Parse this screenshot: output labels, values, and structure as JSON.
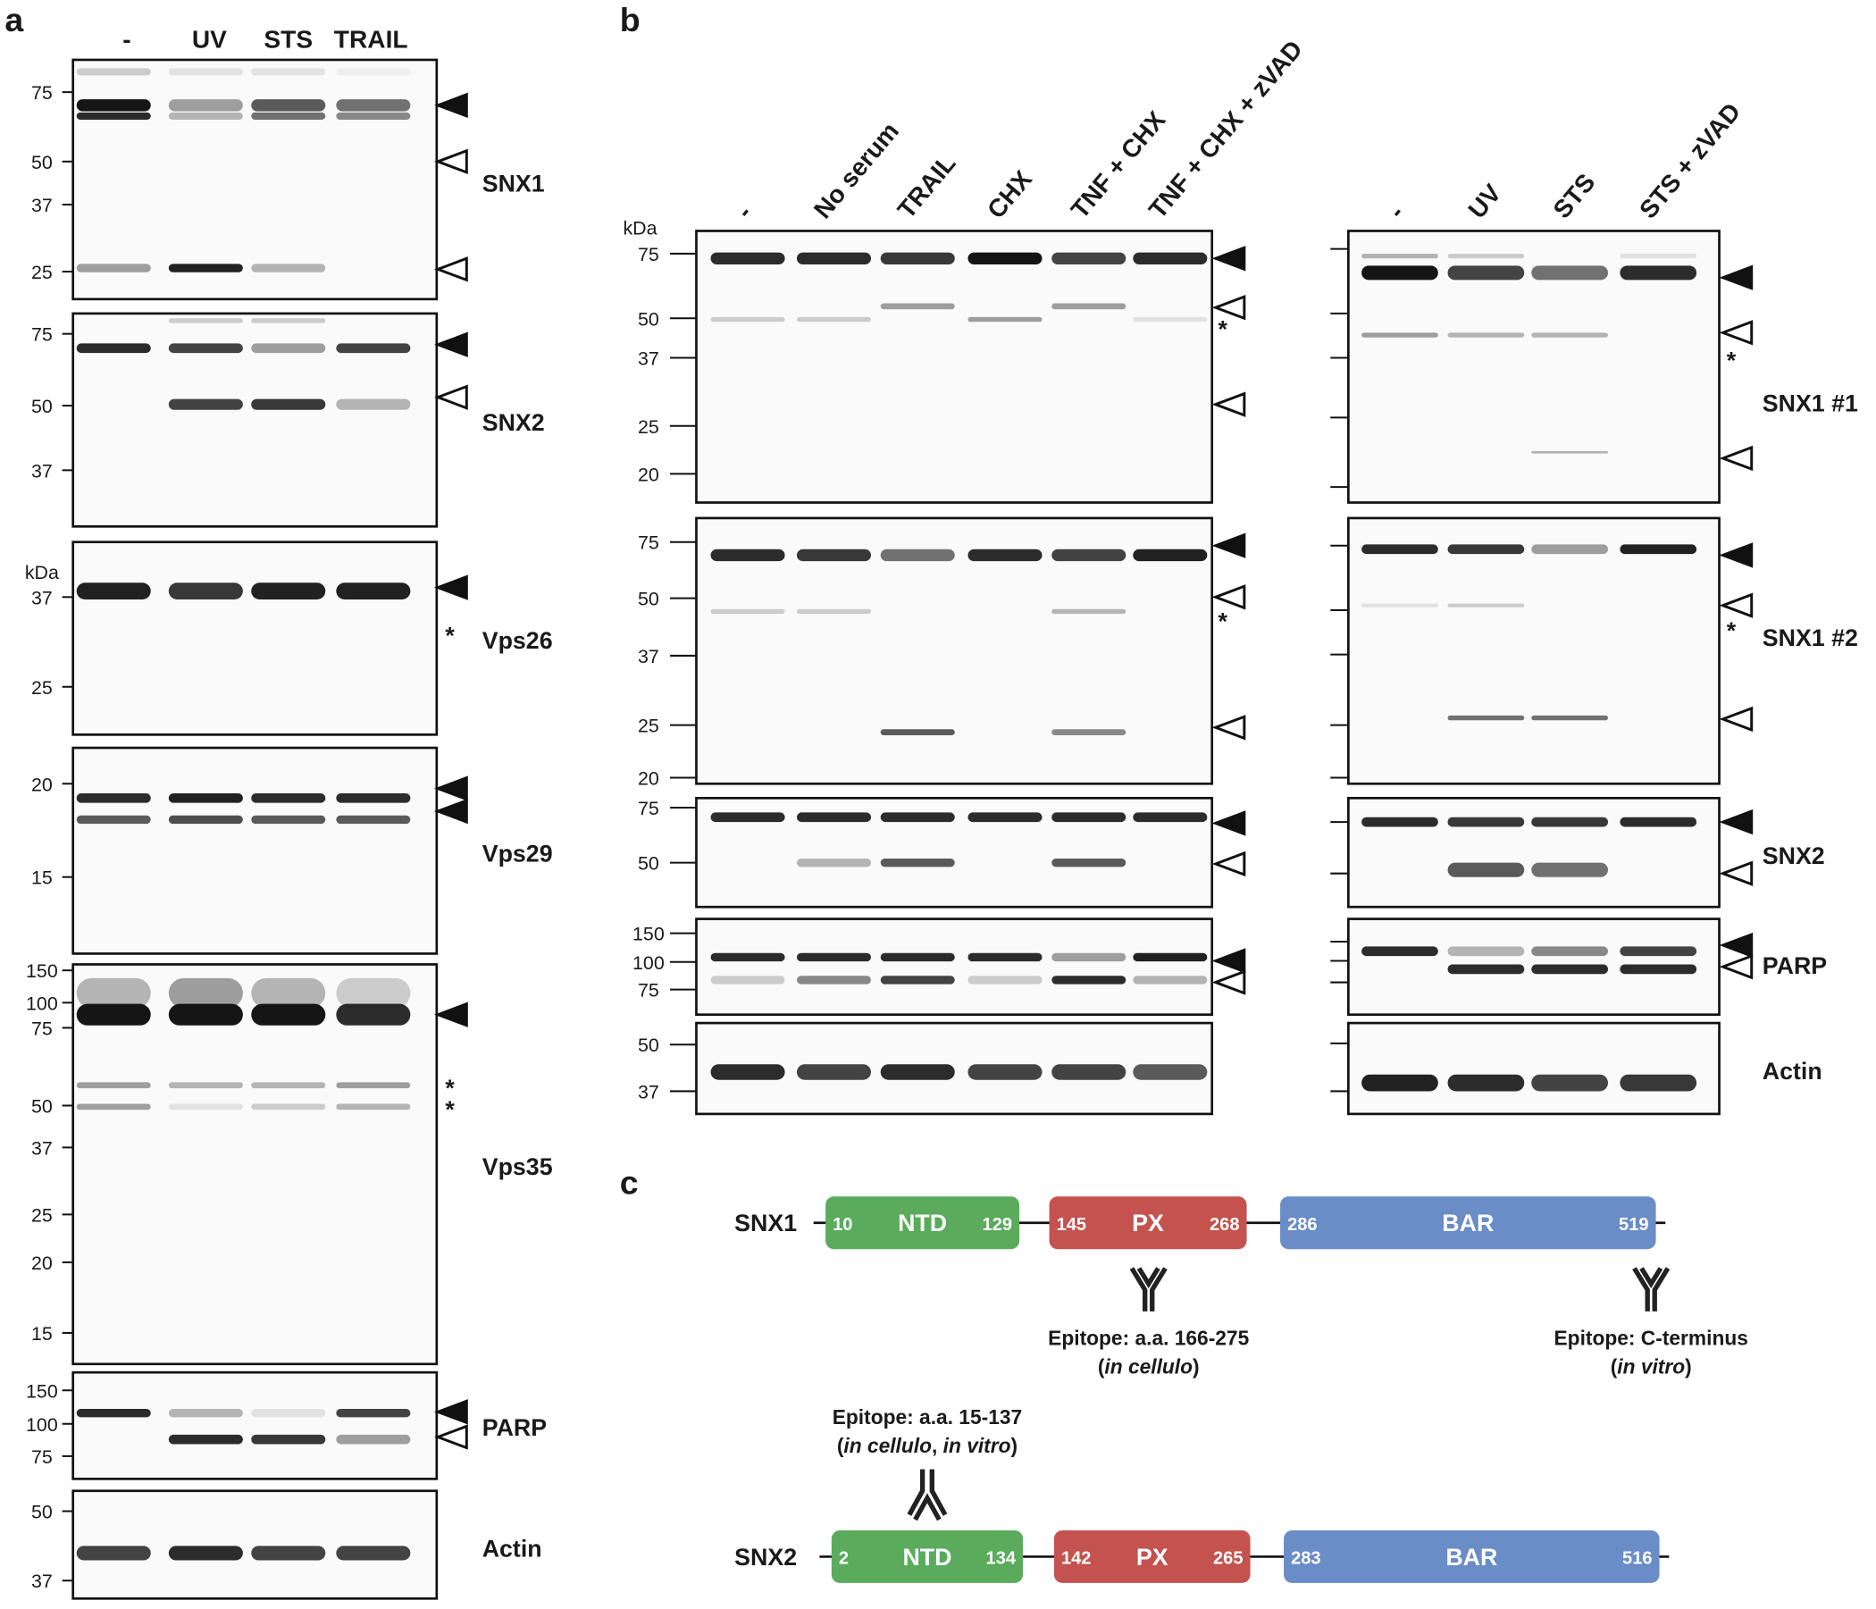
{
  "panel_a": {
    "label": "a",
    "lanes": [
      "-",
      "UV",
      "STS",
      "TRAIL"
    ],
    "blots": [
      {
        "name": "SNX1",
        "markers": [
          "75",
          "50",
          "37",
          "25"
        ]
      },
      {
        "name": "SNX2",
        "markers": [
          "75",
          "50",
          "37"
        ]
      },
      {
        "name": "Vps26",
        "kda": "kDa",
        "markers": [
          "37",
          "25"
        ],
        "asterisks": [
          "*"
        ]
      },
      {
        "name": "Vps29",
        "markers": [
          "20",
          "15"
        ]
      },
      {
        "name": "Vps35",
        "markers": [
          "150",
          "100",
          "75",
          "50",
          "37",
          "25",
          "20",
          "15"
        ],
        "asterisks": [
          "*",
          "*"
        ]
      },
      {
        "name": "PARP",
        "markers": [
          "150",
          "100",
          "75"
        ]
      },
      {
        "name": "Actin",
        "markers": [
          "50",
          "37"
        ]
      }
    ]
  },
  "panel_b": {
    "label": "b",
    "kda": "kDa",
    "lanes_left": [
      "-",
      "No serum",
      "TRAIL",
      "CHX",
      "TNF + CHX",
      "TNF + CHX + zVAD"
    ],
    "lanes_right": [
      "-",
      "UV",
      "STS",
      "STS + zVAD"
    ],
    "blots": [
      {
        "name": "SNX1 #1",
        "markers": [
          "75",
          "50",
          "37",
          "25",
          "20"
        ],
        "asterisks": [
          "*",
          "*"
        ]
      },
      {
        "name": "SNX1 #2",
        "markers": [
          "75",
          "50",
          "37",
          "25",
          "20"
        ],
        "asterisks": [
          "*",
          "*"
        ]
      },
      {
        "name": "SNX2",
        "markers": [
          "75",
          "50"
        ]
      },
      {
        "name": "PARP",
        "markers": [
          "150",
          "100",
          "75"
        ]
      },
      {
        "name": "Actin",
        "markers": [
          "50",
          "37"
        ]
      }
    ]
  },
  "panel_c": {
    "label": "c",
    "proteins": [
      {
        "name": "SNX1",
        "domains": [
          {
            "name": "NTD",
            "start": "10",
            "end": "129"
          },
          {
            "name": "PX",
            "start": "145",
            "end": "268"
          },
          {
            "name": "BAR",
            "start": "286",
            "end": "519"
          }
        ]
      },
      {
        "name": "SNX2",
        "domains": [
          {
            "name": "NTD",
            "start": "2",
            "end": "134"
          },
          {
            "name": "PX",
            "start": "142",
            "end": "265"
          },
          {
            "name": "BAR",
            "start": "283",
            "end": "516"
          }
        ]
      }
    ],
    "epitopes": [
      {
        "text": "Epitope: a.a. 166-275",
        "note": [
          "(",
          "in cellulo",
          ")"
        ]
      },
      {
        "text": "Epitope: C-terminus",
        "note": [
          "(",
          "in vitro",
          ")"
        ]
      },
      {
        "text": "Epitope: a.a. 15-137",
        "note": [
          "(",
          "in cellulo",
          ", ",
          "in vitro",
          ")"
        ]
      }
    ]
  }
}
